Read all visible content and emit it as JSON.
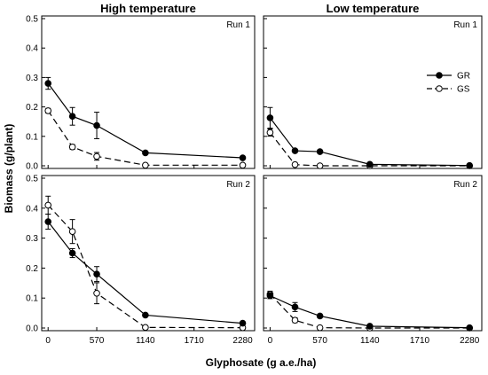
{
  "chart_data": [
    {
      "type": "line",
      "title": "High temperature",
      "panel_label": "Run 1",
      "x": [
        0,
        285,
        570,
        1140,
        2280
      ],
      "ylim": [
        0,
        0.5
      ],
      "series": [
        {
          "name": "GR",
          "values": [
            0.28,
            0.168,
            0.137,
            0.044,
            0.027
          ],
          "errors": [
            0.02,
            0.03,
            0.045,
            0.003,
            0.003
          ],
          "marker": "filled",
          "line": "solid"
        },
        {
          "name": "GS",
          "values": [
            0.187,
            0.064,
            0.032,
            0.002,
            0.002
          ],
          "errors": [
            0.008,
            0.008,
            0.013,
            0.002,
            0.002
          ],
          "marker": "open",
          "line": "dashed"
        }
      ]
    },
    {
      "type": "line",
      "title": "Low temperature",
      "panel_label": "Run 1",
      "x": [
        0,
        285,
        570,
        1140,
        2280
      ],
      "ylim": [
        0,
        0.5
      ],
      "series": [
        {
          "name": "GR",
          "values": [
            0.163,
            0.051,
            0.048,
            0.005,
            0.001
          ],
          "errors": [
            0.035,
            0.004,
            0.004,
            0.002,
            0.001
          ],
          "marker": "filled",
          "line": "solid"
        },
        {
          "name": "GS",
          "values": [
            0.113,
            0.004,
            0.0,
            0.0,
            0.0
          ],
          "errors": [
            0.012,
            0.002,
            0.001,
            0.001,
            0.001
          ],
          "marker": "open",
          "line": "dashed"
        }
      ]
    },
    {
      "type": "line",
      "title": "",
      "panel_label": "Run 2",
      "x": [
        0,
        285,
        570,
        1140,
        2280
      ],
      "ylim": [
        0,
        0.5
      ],
      "series": [
        {
          "name": "GR",
          "values": [
            0.355,
            0.25,
            0.18,
            0.043,
            0.016
          ],
          "errors": [
            0.025,
            0.015,
            0.025,
            0.003,
            0.002
          ],
          "marker": "filled",
          "line": "solid"
        },
        {
          "name": "GS",
          "values": [
            0.41,
            0.322,
            0.116,
            0.002,
            0.001
          ],
          "errors": [
            0.03,
            0.04,
            0.035,
            0.002,
            0.001
          ],
          "marker": "open",
          "line": "dashed"
        }
      ]
    },
    {
      "type": "line",
      "title": "",
      "panel_label": "Run 2",
      "x": [
        0,
        285,
        570,
        1140,
        2280
      ],
      "ylim": [
        0,
        0.5
      ],
      "series": [
        {
          "name": "GR",
          "values": [
            0.108,
            0.07,
            0.04,
            0.006,
            0.001
          ],
          "errors": [
            0.01,
            0.015,
            0.004,
            0.002,
            0.001
          ],
          "marker": "filled",
          "line": "solid"
        },
        {
          "name": "GS",
          "values": [
            0.113,
            0.026,
            0.001,
            0.0,
            0.0
          ],
          "errors": [
            0.01,
            0.008,
            0.001,
            0.001,
            0.001
          ],
          "marker": "open",
          "line": "dashed"
        }
      ]
    }
  ],
  "xticks": [
    0,
    570,
    1140,
    1710,
    2280
  ],
  "yticks": [
    0.0,
    0.1,
    0.2,
    0.3,
    0.4,
    0.5
  ],
  "xlabel": "Glyphosate (g a.e./ha)",
  "ylabel": "Biomass (g/plant)",
  "legend": {
    "placement": "right",
    "panel": 1,
    "entries": [
      "GR",
      "GS"
    ]
  },
  "grid": false,
  "colors": {
    "line": "#000000",
    "open_fill": "#ffffff"
  }
}
